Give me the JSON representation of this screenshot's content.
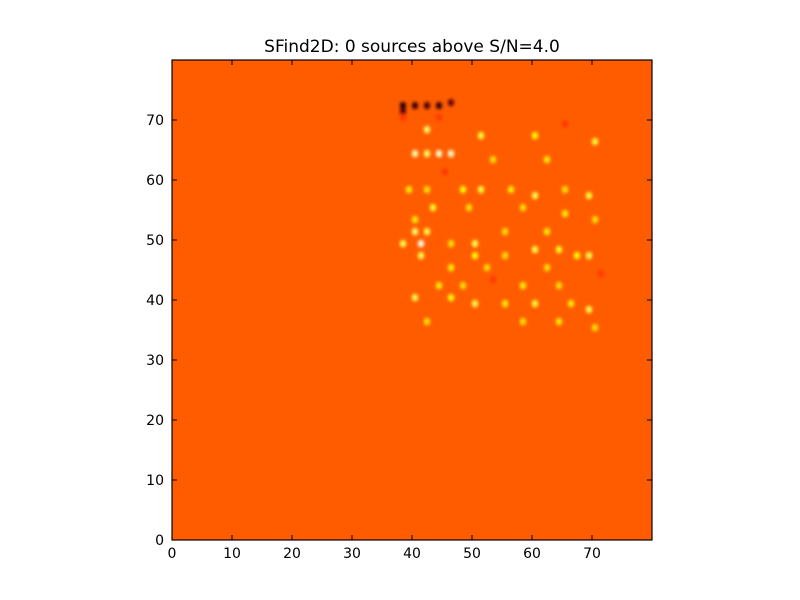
{
  "chart_data": {
    "type": "heatmap",
    "title": "SFind2D: 0 sources above S/N=4.0",
    "xlabel": "",
    "ylabel": "",
    "xlim": [
      0,
      80
    ],
    "ylim": [
      0,
      80
    ],
    "xticks": [
      0,
      10,
      20,
      30,
      40,
      50,
      60,
      70
    ],
    "yticks": [
      0,
      10,
      20,
      30,
      40,
      50,
      60,
      70
    ],
    "grid": false,
    "colormap": "hot",
    "background_color": "#ff5c00",
    "spots": [
      {
        "x": 38,
        "y": 72,
        "v": 0.05
      },
      {
        "x": 40,
        "y": 72,
        "v": 0.08
      },
      {
        "x": 42,
        "y": 72,
        "v": 0.1
      },
      {
        "x": 44,
        "y": 72,
        "v": 0.08
      },
      {
        "x": 46,
        "y": 72.5,
        "v": 0.15
      },
      {
        "x": 38,
        "y": 71,
        "v": 0.12
      },
      {
        "x": 38,
        "y": 70,
        "v": 0.45
      },
      {
        "x": 40,
        "y": 70,
        "v": 0.5
      },
      {
        "x": 42,
        "y": 70,
        "v": 0.5
      },
      {
        "x": 44,
        "y": 70,
        "v": 0.45
      },
      {
        "x": 46,
        "y": 70,
        "v": 0.5
      },
      {
        "x": 42,
        "y": 68,
        "v": 0.85
      },
      {
        "x": 51,
        "y": 67,
        "v": 0.8
      },
      {
        "x": 60,
        "y": 67,
        "v": 0.75
      },
      {
        "x": 65,
        "y": 69,
        "v": 0.45
      },
      {
        "x": 70,
        "y": 66,
        "v": 0.8
      },
      {
        "x": 40,
        "y": 64,
        "v": 0.92
      },
      {
        "x": 42,
        "y": 64,
        "v": 0.85
      },
      {
        "x": 44,
        "y": 64,
        "v": 0.95
      },
      {
        "x": 46,
        "y": 64,
        "v": 0.95
      },
      {
        "x": 53,
        "y": 63,
        "v": 0.7
      },
      {
        "x": 62,
        "y": 63,
        "v": 0.72
      },
      {
        "x": 45,
        "y": 61,
        "v": 0.45
      },
      {
        "x": 39,
        "y": 58,
        "v": 0.72
      },
      {
        "x": 42,
        "y": 58,
        "v": 0.7
      },
      {
        "x": 48,
        "y": 58,
        "v": 0.75
      },
      {
        "x": 51,
        "y": 58,
        "v": 0.8
      },
      {
        "x": 56,
        "y": 58,
        "v": 0.72
      },
      {
        "x": 60,
        "y": 57,
        "v": 0.82
      },
      {
        "x": 65,
        "y": 58,
        "v": 0.7
      },
      {
        "x": 69,
        "y": 57,
        "v": 0.8
      },
      {
        "x": 43,
        "y": 55,
        "v": 0.78
      },
      {
        "x": 49,
        "y": 55,
        "v": 0.7
      },
      {
        "x": 58,
        "y": 55,
        "v": 0.7
      },
      {
        "x": 65,
        "y": 54,
        "v": 0.72
      },
      {
        "x": 40,
        "y": 53,
        "v": 0.72
      },
      {
        "x": 70,
        "y": 53,
        "v": 0.7
      },
      {
        "x": 40,
        "y": 51,
        "v": 0.85
      },
      {
        "x": 42,
        "y": 51,
        "v": 0.82
      },
      {
        "x": 55,
        "y": 51,
        "v": 0.7
      },
      {
        "x": 62,
        "y": 51,
        "v": 0.72
      },
      {
        "x": 38,
        "y": 49,
        "v": 0.82
      },
      {
        "x": 41,
        "y": 49,
        "v": 0.98
      },
      {
        "x": 46,
        "y": 49,
        "v": 0.7
      },
      {
        "x": 50,
        "y": 49,
        "v": 0.82
      },
      {
        "x": 60,
        "y": 48,
        "v": 0.82
      },
      {
        "x": 64,
        "y": 48,
        "v": 0.78
      },
      {
        "x": 41,
        "y": 47,
        "v": 0.82
      },
      {
        "x": 50,
        "y": 47,
        "v": 0.75
      },
      {
        "x": 55,
        "y": 47,
        "v": 0.7
      },
      {
        "x": 67,
        "y": 47,
        "v": 0.75
      },
      {
        "x": 69,
        "y": 47,
        "v": 0.82
      },
      {
        "x": 46,
        "y": 45,
        "v": 0.72
      },
      {
        "x": 52,
        "y": 45,
        "v": 0.7
      },
      {
        "x": 62,
        "y": 45,
        "v": 0.7
      },
      {
        "x": 71,
        "y": 44,
        "v": 0.45
      },
      {
        "x": 53,
        "y": 43,
        "v": 0.45
      },
      {
        "x": 44,
        "y": 42,
        "v": 0.72
      },
      {
        "x": 48,
        "y": 42,
        "v": 0.7
      },
      {
        "x": 58,
        "y": 42,
        "v": 0.72
      },
      {
        "x": 64,
        "y": 42,
        "v": 0.7
      },
      {
        "x": 40,
        "y": 40,
        "v": 0.82
      },
      {
        "x": 46,
        "y": 40,
        "v": 0.75
      },
      {
        "x": 50,
        "y": 39,
        "v": 0.82
      },
      {
        "x": 55,
        "y": 39,
        "v": 0.72
      },
      {
        "x": 60,
        "y": 39,
        "v": 0.8
      },
      {
        "x": 66,
        "y": 39,
        "v": 0.72
      },
      {
        "x": 69,
        "y": 38,
        "v": 0.82
      },
      {
        "x": 42,
        "y": 36,
        "v": 0.7
      },
      {
        "x": 58,
        "y": 36,
        "v": 0.7
      },
      {
        "x": 64,
        "y": 36,
        "v": 0.72
      },
      {
        "x": 70,
        "y": 35,
        "v": 0.7
      }
    ]
  }
}
